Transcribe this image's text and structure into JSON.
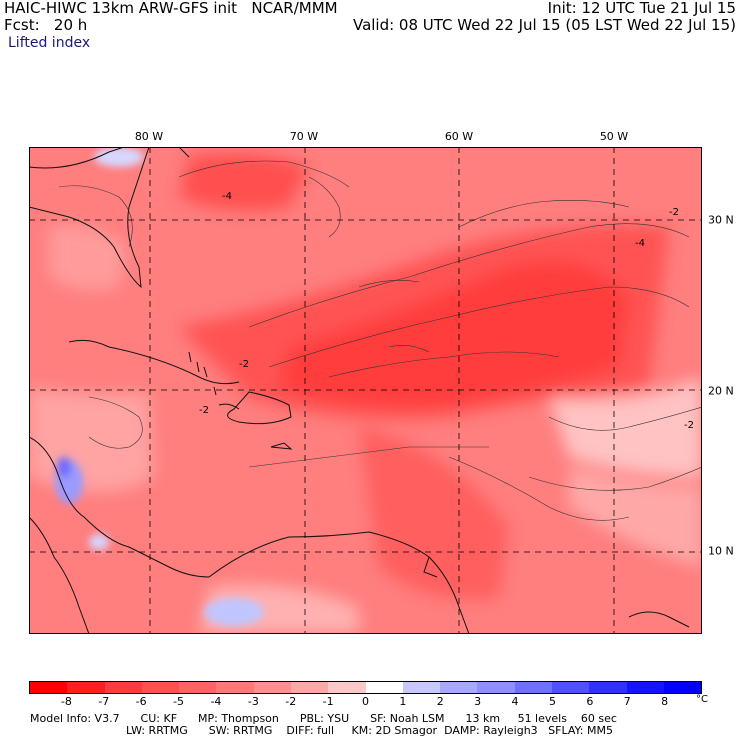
{
  "header": {
    "title": "HAIC-HIWC 13km ARW-GFS init   NCAR/MMM",
    "forecast": "Fcst:   20 h",
    "init": "Init: 12 UTC Tue 21 Jul 15",
    "valid": "Valid: 08 UTC Wed 22 Jul 15 (05 LST Wed 22 Jul 15)",
    "field": "Lifted index"
  },
  "map": {
    "lon_labels": [
      "80 W",
      "70 W",
      "60 W",
      "50 W"
    ],
    "lat_labels": [
      "30 N",
      "20 N",
      "10 N"
    ],
    "contour_labels": [
      "-4",
      "-2",
      "-4",
      "-2",
      "-2",
      "-2"
    ]
  },
  "colorbar": {
    "ticks": [
      "-8",
      "-7",
      "-6",
      "-5",
      "-4",
      "-3",
      "-2",
      "-1",
      "0",
      "1",
      "2",
      "3",
      "4",
      "5",
      "6",
      "7",
      "8"
    ],
    "unit": "°C",
    "colors": [
      "#ff0000",
      "#ff1f1f",
      "#ff3b3b",
      "#ff5050",
      "#ff6464",
      "#ff7878",
      "#ff8f8f",
      "#ffa8a8",
      "#ffc8c8",
      "#ffffff",
      "#c8c8ff",
      "#a8a8ff",
      "#8f8fff",
      "#7070ff",
      "#5050ff",
      "#3030ff",
      "#1414ff",
      "#0000ff"
    ]
  },
  "model_info": {
    "row1": "Model Info: V3.7      CU: KF      MP: Thompson      PBL: YSU      SF: Noah LSM      13 km     51 levels    60 sec",
    "row2": "LW: RRTMG      SW: RRTMG    DIFF: full     KM: 2D Smagor  DAMP: Rayleigh3   SFLAY: MM5"
  }
}
